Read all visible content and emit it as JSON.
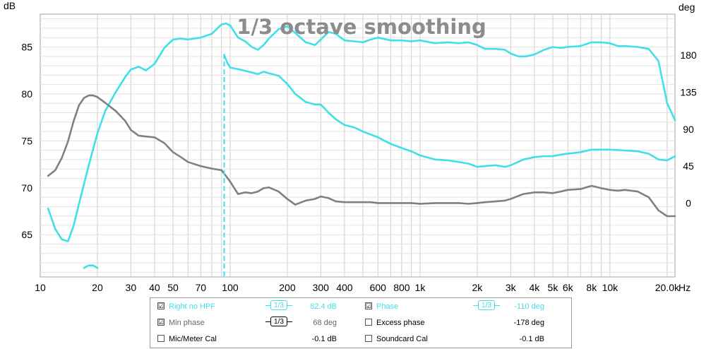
{
  "chart_data": {
    "type": "line",
    "title": "1/3 octave smoothing",
    "y_left_unit": "dB",
    "y_right_unit": "deg",
    "x_unit": "Hz",
    "x_scale": "log",
    "xlim": [
      10,
      22000
    ],
    "ylim_left": [
      60.5,
      88.5
    ],
    "ylim_right": [
      -90,
      230
    ],
    "x_ticks": [
      {
        "v": 10,
        "label": "10"
      },
      {
        "v": 20,
        "label": "20"
      },
      {
        "v": 30,
        "label": "30"
      },
      {
        "v": 40,
        "label": "40"
      },
      {
        "v": 50,
        "label": "50"
      },
      {
        "v": 70,
        "label": "70"
      },
      {
        "v": 100,
        "label": "100"
      },
      {
        "v": 200,
        "label": "200"
      },
      {
        "v": 300,
        "label": "300"
      },
      {
        "v": 400,
        "label": "400"
      },
      {
        "v": 600,
        "label": "600"
      },
      {
        "v": 800,
        "label": "800"
      },
      {
        "v": 1000,
        "label": "1k"
      },
      {
        "v": 2000,
        "label": "2k"
      },
      {
        "v": 3000,
        "label": "3k"
      },
      {
        "v": 4000,
        "label": "4k"
      },
      {
        "v": 5000,
        "label": "5k"
      },
      {
        "v": 6000,
        "label": "6k"
      },
      {
        "v": 8000,
        "label": "8k"
      },
      {
        "v": 10000,
        "label": "10k"
      },
      {
        "v": 20000,
        "label": "20.0k"
      }
    ],
    "y_left_ticks": [
      {
        "v": 65,
        "label": "65"
      },
      {
        "v": 70,
        "label": "70"
      },
      {
        "v": 75,
        "label": "75"
      },
      {
        "v": 80,
        "label": "80"
      },
      {
        "v": 85,
        "label": "85"
      }
    ],
    "y_right_ticks": [
      {
        "v": 0,
        "label": "0"
      },
      {
        "v": 45,
        "label": "45"
      },
      {
        "v": 90,
        "label": "90"
      },
      {
        "v": 135,
        "label": "135"
      },
      {
        "v": 180,
        "label": "180"
      }
    ],
    "cursor_x": 93,
    "grid": true,
    "series": [
      {
        "name": "Right no HPF",
        "axis": "left",
        "color": "#3fe0e8",
        "x": [
          11,
          12,
          13,
          14,
          15,
          16,
          17,
          18,
          20,
          22,
          25,
          28,
          30,
          33,
          36,
          40,
          45,
          50,
          55,
          60,
          70,
          80,
          90,
          95,
          100,
          110,
          120,
          130,
          140,
          150,
          160,
          180,
          200,
          220,
          250,
          280,
          300,
          330,
          360,
          400,
          450,
          500,
          550,
          600,
          700,
          800,
          900,
          1000,
          1200,
          1400,
          1600,
          1800,
          2000,
          2200,
          2500,
          2800,
          3000,
          3300,
          3600,
          4000,
          4500,
          5000,
          5500,
          6000,
          7000,
          8000,
          9000,
          10000,
          11000,
          12000,
          14000,
          16000,
          18000,
          20000,
          22000
        ],
        "y": [
          67.8,
          65.6,
          64.5,
          64.3,
          66.0,
          68.3,
          70.4,
          72.4,
          75.8,
          78.2,
          80.2,
          81.8,
          82.6,
          82.9,
          82.5,
          83.2,
          84.9,
          85.8,
          85.9,
          85.8,
          86.0,
          86.4,
          87.4,
          87.5,
          87.3,
          86.0,
          85.6,
          85.0,
          84.7,
          85.2,
          85.9,
          86.9,
          87.2,
          86.5,
          85.5,
          85.2,
          85.8,
          86.6,
          86.4,
          85.7,
          85.6,
          85.5,
          85.8,
          86.0,
          85.7,
          85.7,
          85.6,
          85.7,
          85.4,
          85.5,
          85.4,
          85.5,
          85.2,
          84.8,
          84.8,
          84.7,
          84.3,
          84.0,
          84.0,
          84.2,
          84.7,
          85.0,
          84.9,
          85.0,
          85.1,
          85.5,
          85.5,
          85.4,
          85.1,
          85.1,
          85.0,
          84.8,
          83.5,
          79.0,
          77.2
        ]
      },
      {
        "name": "Phase",
        "axis": "right",
        "color": "#3fe0e8",
        "x": [
          93,
          97,
          100,
          110,
          120,
          140,
          150,
          160,
          180,
          200,
          220,
          250,
          280,
          300,
          330,
          360,
          400,
          450,
          500,
          600,
          700,
          800,
          900,
          1000,
          1200,
          1400,
          1600,
          1800,
          2000,
          2200,
          2500,
          2800,
          3000,
          3500,
          4000,
          4500,
          5000,
          5500,
          6000,
          7000,
          8000,
          10000,
          12000,
          14000,
          16000,
          18000,
          20000,
          22000
        ],
        "y": [
          180,
          170,
          165,
          163,
          161,
          157,
          160,
          158,
          155,
          145,
          133,
          123,
          120,
          120,
          110,
          102,
          95,
          92,
          87,
          80,
          72,
          67,
          63,
          58,
          53,
          52,
          50,
          48,
          44,
          45,
          46,
          44,
          46,
          53,
          56,
          57,
          57,
          59,
          60,
          62,
          65,
          65,
          64,
          63,
          60,
          53,
          52,
          57
        ]
      },
      {
        "name": "Min phase",
        "axis": "right",
        "color": "#808080",
        "x": [
          11,
          12,
          13,
          14,
          15,
          16,
          17,
          18,
          19,
          20,
          22,
          25,
          28,
          30,
          33,
          36,
          40,
          45,
          50,
          55,
          60,
          70,
          80,
          90,
          95,
          100,
          110,
          120,
          130,
          140,
          150,
          160,
          180,
          200,
          220,
          250,
          280,
          300,
          330,
          360,
          400,
          450,
          500,
          550,
          600,
          700,
          800,
          900,
          1000,
          1200,
          1400,
          1600,
          1800,
          2000,
          2200,
          2500,
          2800,
          3000,
          3500,
          4000,
          4500,
          5000,
          5500,
          6000,
          7000,
          8000,
          9000,
          10000,
          11000,
          12000,
          14000,
          16000,
          18000,
          20000,
          22000
        ],
        "y": [
          33,
          40,
          55,
          75,
          100,
          119,
          128,
          131,
          131,
          129,
          122,
          112,
          100,
          89,
          82,
          81,
          80,
          73,
          62,
          56,
          50,
          45,
          42,
          40,
          33,
          26,
          11,
          13,
          12,
          14,
          18,
          19,
          14,
          5,
          -2,
          3,
          5,
          8,
          6,
          2,
          1,
          1,
          1,
          1,
          0,
          0,
          0,
          0,
          -1,
          0,
          0,
          0,
          -1,
          0,
          1,
          2,
          3,
          5,
          11,
          13,
          13,
          12,
          14,
          16,
          17,
          21,
          18,
          16,
          15,
          16,
          14,
          7,
          -9,
          -16,
          -16
        ]
      },
      {
        "name": "Right no HPF",
        "axis": "right",
        "color": "#3fe0e8",
        "x": [
          17,
          18,
          19,
          20
        ],
        "y": [
          -79,
          -76,
          -76,
          -79
        ]
      }
    ]
  },
  "legend": {
    "rows": [
      {
        "left_check": "☑",
        "left_label": "Right no HPF",
        "left_smooth": "1/3",
        "left_value": "82.4 dB",
        "right_check": "☑",
        "right_label": "Phase",
        "right_smooth": "1/3",
        "right_value": "-110 deg"
      },
      {
        "left_check": "☑",
        "left_label": "Min phase",
        "left_smooth": "1/3",
        "left_value": "68 deg",
        "right_check": "",
        "right_label": "Excess phase",
        "right_smooth": "",
        "right_value": "-178 deg"
      },
      {
        "left_check": "",
        "left_label": "Mic/Meter Cal",
        "left_smooth": "",
        "left_value": "-0.1 dB",
        "right_check": "",
        "right_label": "Soundcard Cal",
        "right_smooth": "",
        "right_value": "-0.1 dB"
      }
    ]
  }
}
